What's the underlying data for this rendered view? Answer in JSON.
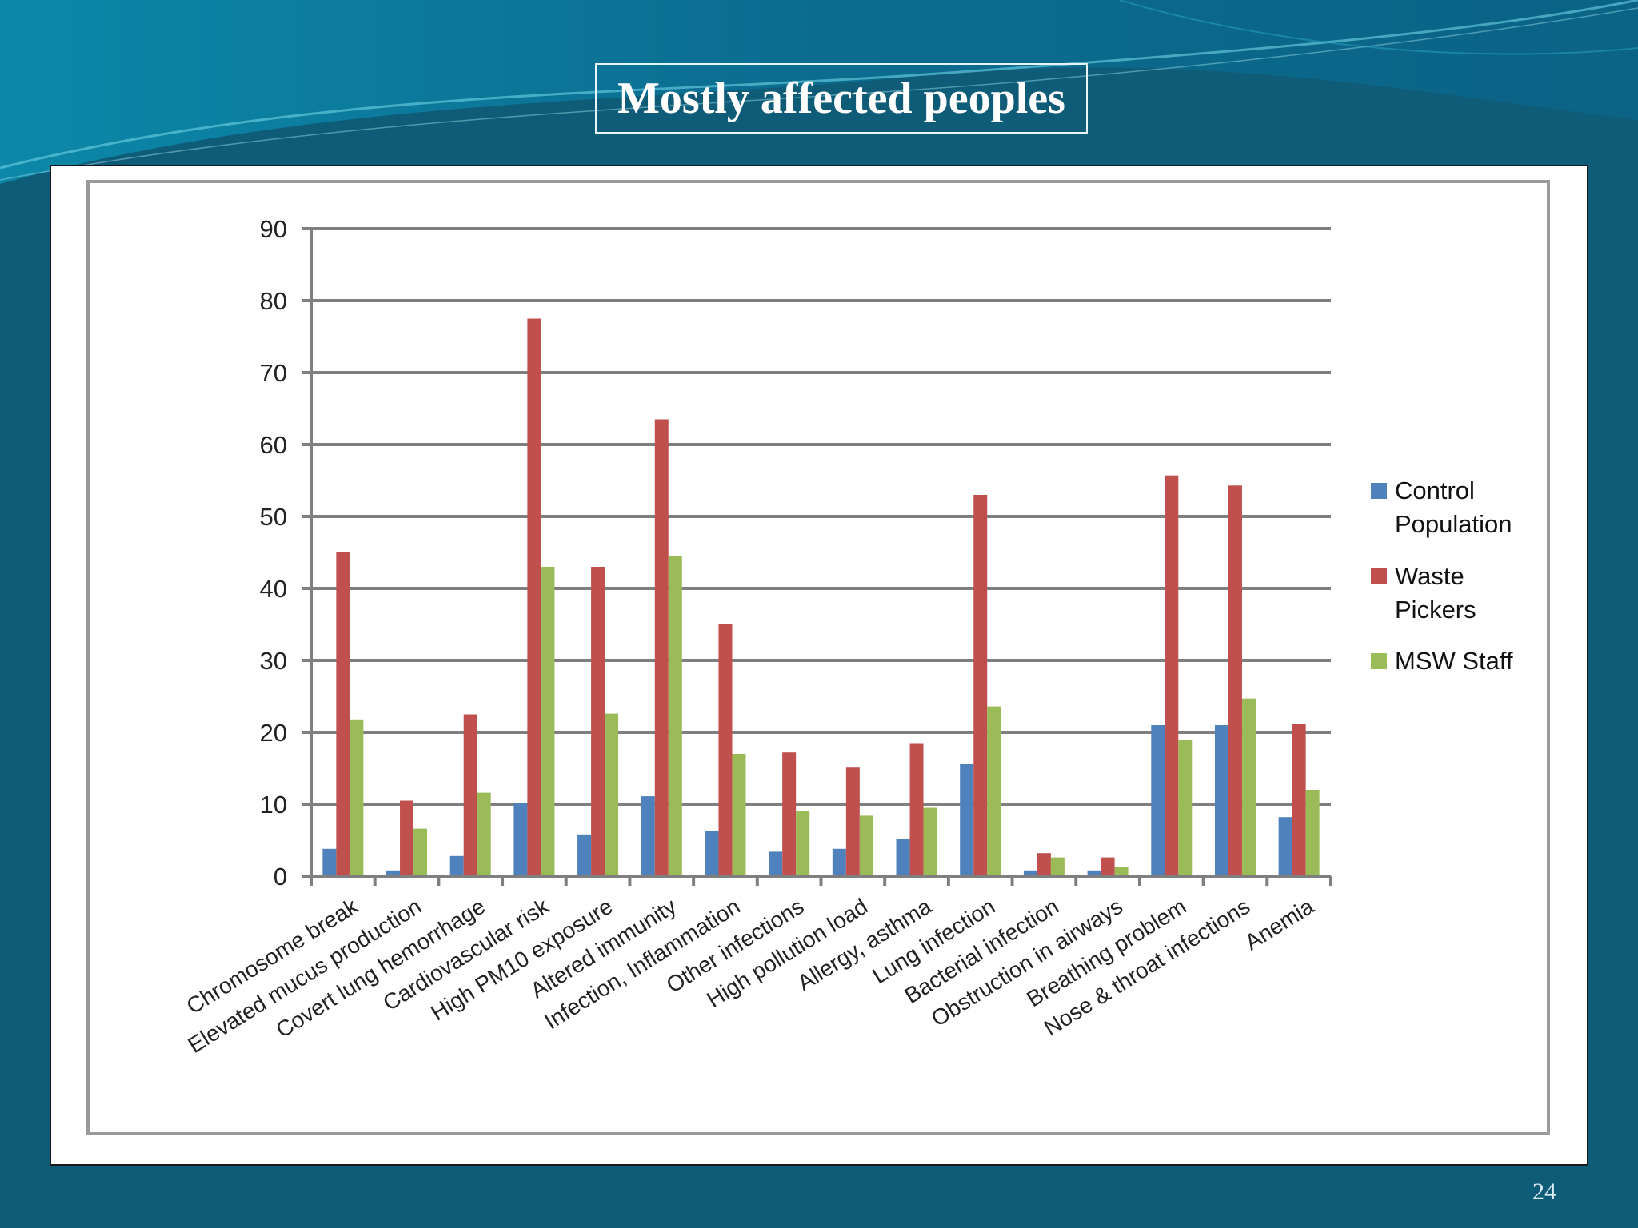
{
  "slide": {
    "title": "Mostly affected peoples",
    "page_number": "24"
  },
  "colors": {
    "background": "#0f5c78",
    "control": "#4f81bd",
    "waste_pickers": "#c0504d",
    "msw_staff": "#9bbb59",
    "gridline": "#7f7f7f"
  },
  "chart_data": {
    "type": "bar",
    "title": "",
    "xlabel": "",
    "ylabel": "",
    "ylim": [
      0,
      90
    ],
    "yticks": [
      0,
      10,
      20,
      30,
      40,
      50,
      60,
      70,
      80,
      90
    ],
    "grid": true,
    "legend_position": "right",
    "categories": [
      "Chromosome break",
      "Elevated mucus production",
      "Covert lung hemorrhage",
      "Cardiovascular risk",
      "High PM10 exposure",
      "Altered immunity",
      "Infection, Inflammation",
      "Other infections",
      "High pollution load",
      "Allergy, asthma",
      "Lung infection",
      "Bacterial infection",
      "Obstruction in airways",
      "Breathing problem",
      "Nose & throat infections",
      "Anemia"
    ],
    "series": [
      {
        "name": "Control Population",
        "legend_lines": [
          "Control",
          "Population"
        ],
        "color": "#4f81bd",
        "values": [
          3.8,
          0.8,
          2.8,
          10.2,
          5.8,
          11.1,
          6.3,
          3.4,
          3.8,
          5.2,
          15.6,
          0.8,
          0.8,
          21,
          21,
          8.2
        ]
      },
      {
        "name": "Waste Pickers",
        "legend_lines": [
          "Waste",
          "Pickers"
        ],
        "color": "#c0504d",
        "values": [
          45,
          10.5,
          22.5,
          77.5,
          43,
          63.5,
          35,
          17.2,
          15.2,
          18.5,
          53,
          3.2,
          2.6,
          55.7,
          54.3,
          21.2
        ]
      },
      {
        "name": "MSW Staff",
        "legend_lines": [
          "MSW Staff"
        ],
        "color": "#9bbb59",
        "values": [
          21.8,
          6.6,
          11.6,
          43,
          22.6,
          44.5,
          17,
          9,
          8.4,
          9.5,
          23.6,
          2.6,
          1.3,
          18.9,
          24.7,
          12
        ]
      }
    ]
  }
}
